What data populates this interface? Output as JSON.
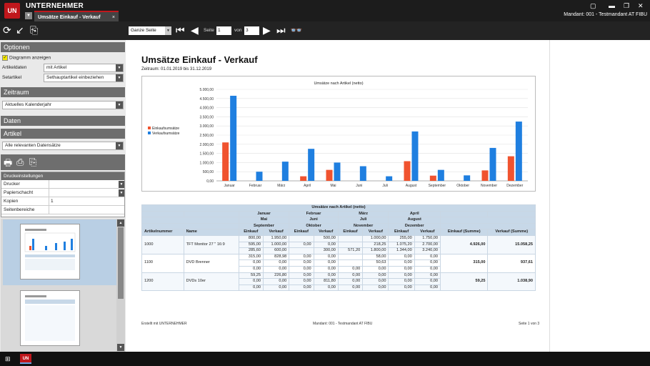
{
  "app": {
    "title": "UNTERNEHMER",
    "logo": "UN"
  },
  "tab": {
    "label": "Umsätze Einkauf - Verkauf",
    "close": "×"
  },
  "mandant": "Mandant: 001 - Testmandant AT FIBU",
  "toolbar": {
    "zoom": "Ganze Seite",
    "page_label": "Seite",
    "page_value": "1",
    "of_label": "von",
    "of_value": "3"
  },
  "left": {
    "optionen": "Optionen",
    "diagramm": "Diagramm anzeigen",
    "artikeldaten_label": "Artikeldaten",
    "artikeldaten_value": "mit Artikel",
    "setartikel_label": "Setartikel",
    "setartikel_value": "Sethauptartikel einbeziehen",
    "zeitraum": "Zeitraum",
    "zeitraum_value": "Aktuelles Kalenderjahr",
    "daten": "Daten",
    "artikel": "Artikel",
    "artikel_value": "Alle relevanten Datensätze",
    "druck_header": "Druckeinstellungen",
    "drucker": "Drucker",
    "papierschacht": "Papierschacht",
    "kopien": "Kopien",
    "kopien_value": "1",
    "seitenbereiche": "Seitenbereiche"
  },
  "report": {
    "title": "Umsätze Einkauf - Verkauf",
    "subtitle": "Zeitraum: 01.01.2019 bis 31.12.2019",
    "table_title": "Umsätze nach Artikel (netto)",
    "headers": {
      "artikelnummer": "Artikelnummer",
      "name": "Name",
      "einkauf": "Einkauf",
      "verkauf": "Verkauf",
      "einkauf_summe": "Einkauf (Summe)",
      "verkauf_summe": "Verkauf (Summe)"
    },
    "month_groups": [
      [
        "Januar",
        "Mai",
        "September"
      ],
      [
        "Februar",
        "Juni",
        "Oktober"
      ],
      [
        "März",
        "Juli",
        "November"
      ],
      [
        "April",
        "August",
        "Dezember"
      ]
    ],
    "rows": [
      {
        "nr": "1000",
        "name": "TFT Monitor 27 \" 16:9",
        "ek_sum": "4.926,00",
        "vk_sum": "15.058,25",
        "lines": [
          [
            "800,00",
            "1.950,00",
            "",
            "500,00",
            "",
            "1.000,00",
            "255,00",
            "1.750,00"
          ],
          [
            "595,00",
            "1.000,00",
            "0,00",
            "0,00",
            "",
            "218,25",
            "1.075,20",
            "2.700,00"
          ],
          [
            "285,60",
            "600,00",
            "",
            "300,00",
            "571,20",
            "1.800,00",
            "1.344,00",
            "3.240,00"
          ]
        ]
      },
      {
        "nr": "1100",
        "name": "DVD Brenner",
        "ek_sum": "315,00",
        "vk_sum": "937,61",
        "lines": [
          [
            "315,00",
            "828,98",
            "0,00",
            "0,00",
            "",
            "58,00",
            "0,00",
            "0,00"
          ],
          [
            "0,00",
            "0,00",
            "0,00",
            "0,00",
            "",
            "50,63",
            "0,00",
            "0,00"
          ],
          [
            "0,00",
            "0,00",
            "0,00",
            "0,00",
            "0,00",
            "0,00",
            "0,00",
            "0,00"
          ]
        ]
      },
      {
        "nr": "1200",
        "name": "DVDs 10er",
        "ek_sum": "59,25",
        "vk_sum": "1.038,90",
        "lines": [
          [
            "59,25",
            "226,80",
            "0,00",
            "0,00",
            "0,00",
            "0,00",
            "0,00",
            "0,00"
          ],
          [
            "0,00",
            "0,00",
            "0,00",
            "811,80",
            "0,00",
            "0,00",
            "0,00",
            "0,00"
          ],
          [
            "0,00",
            "0,00",
            "0,00",
            "0,00",
            "0,00",
            "0,00",
            "0,00",
            "0,00"
          ]
        ]
      }
    ],
    "footer_left": "Erstellt mit UNTERNEHMER",
    "footer_center": "Mandant: 001 - Testmandant AT FIBU",
    "footer_right": "Seite 1 von 3"
  },
  "chart_data": {
    "type": "bar",
    "title": "Umsätze nach Artikel (netto)",
    "categories": [
      "Januar",
      "Februar",
      "März",
      "April",
      "Mai",
      "Juni",
      "Juli",
      "August",
      "September",
      "Oktober",
      "November",
      "Dezember"
    ],
    "series": [
      {
        "name": "Einkaufsumsätze",
        "color": "#f0532f",
        "values": [
          2100,
          0,
          0,
          250,
          600,
          0,
          0,
          1075,
          285,
          0,
          571,
          1344
        ]
      },
      {
        "name": "Verkaufsumsätze",
        "color": "#1f7fe0",
        "values": [
          4650,
          500,
          1050,
          1750,
          1000,
          800,
          250,
          2700,
          600,
          300,
          1800,
          3240
        ]
      }
    ],
    "yticks": [
      "5.000,00",
      "4.500,00",
      "4.000,00",
      "3.500,00",
      "3.000,00",
      "2.500,00",
      "2.000,00",
      "1.500,00",
      "1.000,00",
      "500,00",
      "0,00"
    ],
    "ylim": [
      0,
      5000
    ],
    "grid": true,
    "legend": "left"
  }
}
